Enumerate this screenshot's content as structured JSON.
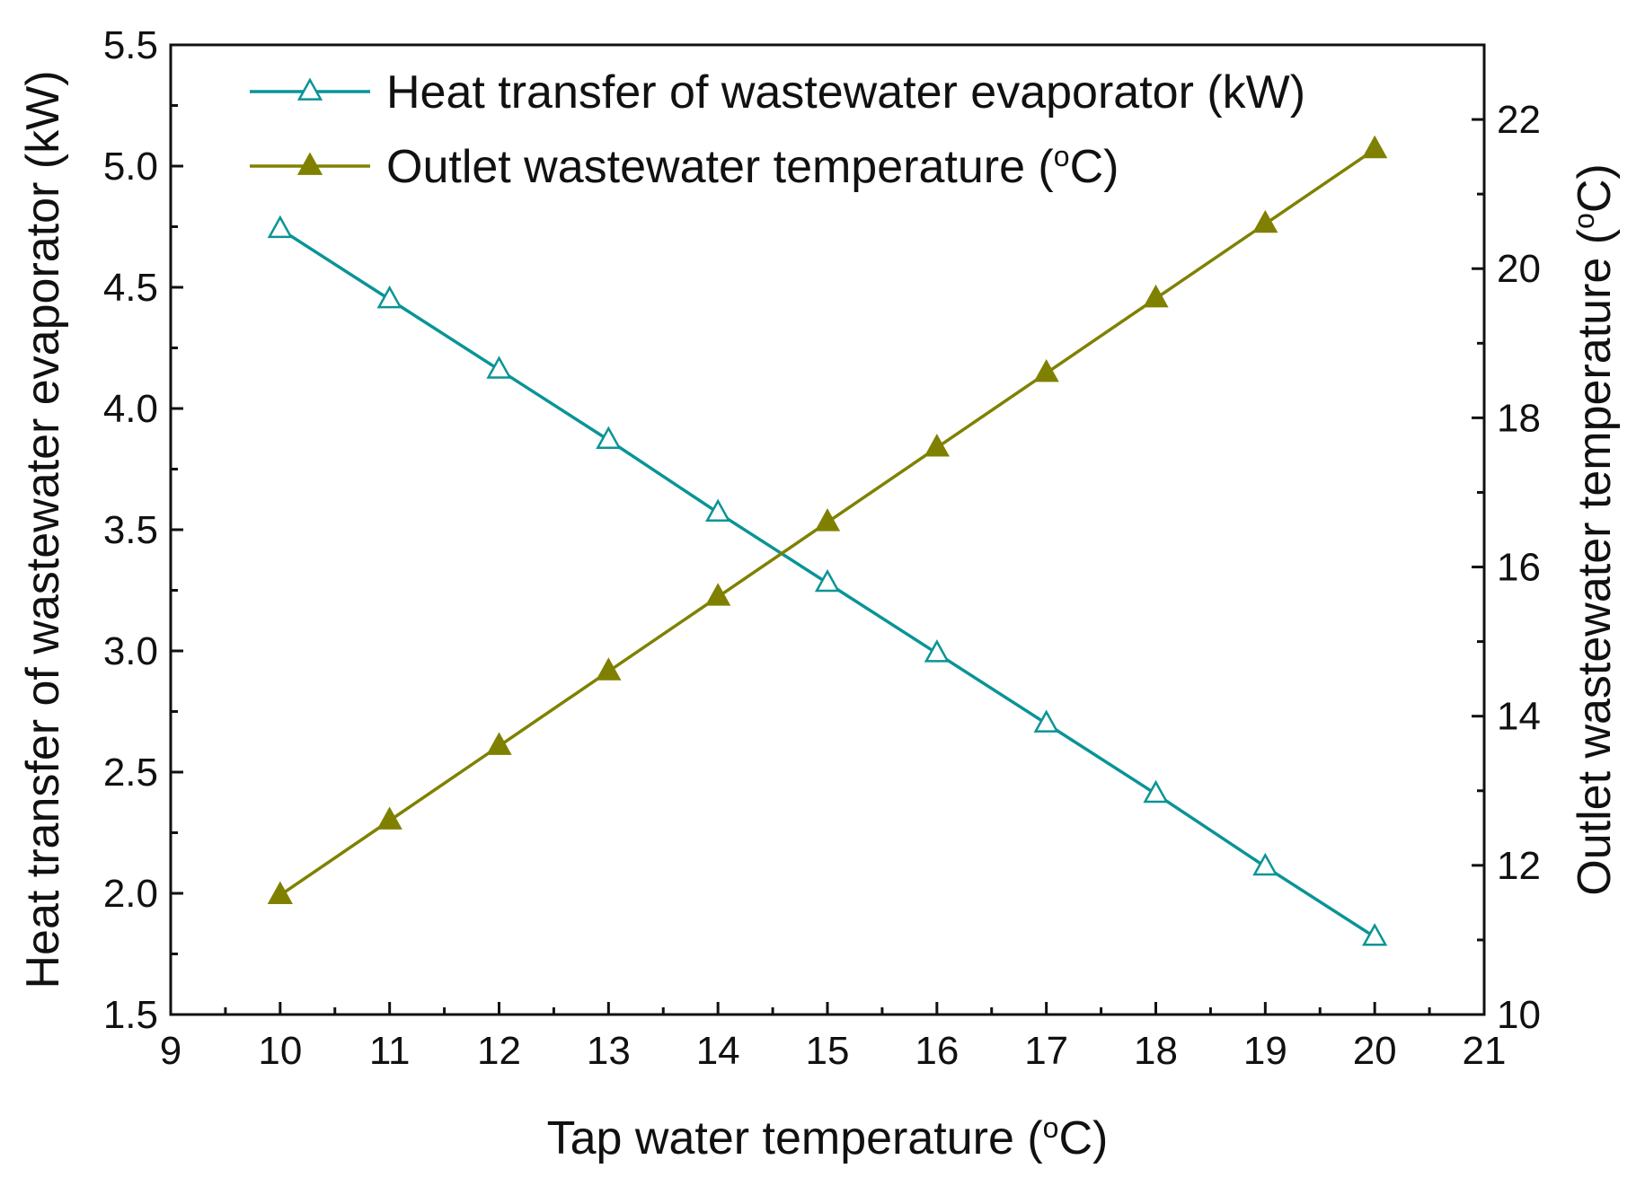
{
  "chart_data": {
    "type": "line",
    "title": "",
    "xlabel": "Tap water temperature (oC)",
    "ylabel_left": "Heat transfer of wastewater evaporator (kW)",
    "ylabel_right": "Outlet wastewater temperature (oC)",
    "xlim": [
      9,
      21
    ],
    "ylim_left": [
      1.5,
      5.5
    ],
    "ylim_right": [
      10,
      23
    ],
    "x_ticks": [
      9,
      10,
      11,
      12,
      13,
      14,
      15,
      16,
      17,
      18,
      19,
      20,
      21
    ],
    "y_left_ticks": [
      "1.5",
      "2.0",
      "2.5",
      "3.0",
      "3.5",
      "4.0",
      "4.5",
      "5.0",
      "5.5"
    ],
    "y_right_ticks": [
      "10",
      "12",
      "14",
      "16",
      "18",
      "20",
      "22"
    ],
    "grid": false,
    "legend_position": "top-left",
    "x": [
      10,
      11,
      12,
      13,
      14,
      15,
      16,
      17,
      18,
      19,
      20
    ],
    "series": [
      {
        "name": "Heat transfer of wastewater evaporator (kW)",
        "axis": "left",
        "marker": "open-triangle",
        "color": "#0a9496",
        "values": [
          4.74,
          4.45,
          4.16,
          3.87,
          3.57,
          3.28,
          2.99,
          2.7,
          2.41,
          2.11,
          1.82
        ]
      },
      {
        "name": "Outlet wastewater temperature (oC)",
        "axis": "right",
        "marker": "filled-triangle",
        "color": "#808000",
        "values": [
          11.6,
          12.6,
          13.6,
          14.6,
          15.6,
          16.6,
          17.6,
          18.6,
          19.6,
          20.6,
          21.6
        ]
      }
    ]
  }
}
